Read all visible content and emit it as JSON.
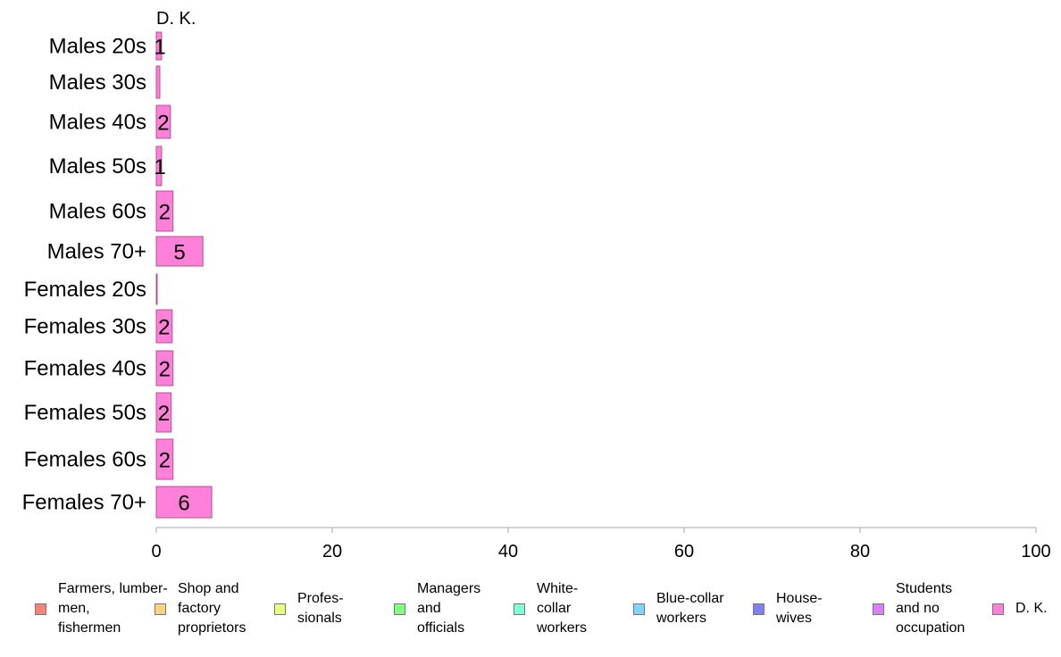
{
  "chart_data": {
    "type": "bar",
    "orientation": "horizontal",
    "stacked": true,
    "column_header": "D. K.",
    "categories": [
      "Males 20s",
      "Males 30s",
      "Males 40s",
      "Males 50s",
      "Males 60s",
      "Males 70+",
      "Females 20s",
      "Females 30s",
      "Females 40s",
      "Females 50s",
      "Females 60s",
      "Females 70+"
    ],
    "series": [
      {
        "name": "Farmers, lumber-\nmen,\nfishermen",
        "color": "#f88379",
        "values": [
          0,
          0,
          0,
          0,
          0,
          0,
          0,
          0,
          0,
          0,
          0,
          0
        ]
      },
      {
        "name": "Shop and\nfactory\nproprietors",
        "color": "#ffd27f",
        "values": [
          0,
          0,
          0,
          0,
          0,
          0,
          0,
          0,
          0,
          0,
          0,
          0
        ]
      },
      {
        "name": "Profes-\nsionals",
        "color": "#e6ff80",
        "values": [
          0,
          0,
          0,
          0,
          0,
          0,
          0,
          0,
          0,
          0,
          0,
          0
        ]
      },
      {
        "name": "Managers\nand\nofficials",
        "color": "#80ff80",
        "values": [
          0,
          0,
          0,
          0,
          0,
          0,
          0,
          0,
          0,
          0,
          0,
          0
        ]
      },
      {
        "name": "White-\ncollar\nworkers",
        "color": "#80ffd4",
        "values": [
          0,
          0,
          0,
          0,
          0,
          0,
          0,
          0,
          0,
          0,
          0,
          0
        ]
      },
      {
        "name": "Blue-collar\nworkers",
        "color": "#80d4ff",
        "values": [
          0,
          0,
          0,
          0,
          0,
          0,
          0,
          0,
          0,
          0,
          0,
          0
        ]
      },
      {
        "name": "House-\nwives",
        "color": "#8080f0",
        "values": [
          0,
          0,
          0,
          0,
          0,
          0,
          0,
          0,
          0,
          0,
          0,
          0
        ]
      },
      {
        "name": "Students\nand no\noccupation",
        "color": "#d97fff",
        "values": [
          0,
          0,
          0,
          0,
          0,
          0,
          0,
          0,
          0,
          0,
          0,
          0
        ]
      },
      {
        "name": "D. K.",
        "color": "#ff80d9",
        "values": [
          0.6,
          0.4,
          1.6,
          0.6,
          1.9,
          5.3,
          0.1,
          1.8,
          1.9,
          1.7,
          1.9,
          6.3
        ]
      }
    ],
    "data_labels": [
      "1",
      "",
      "2",
      "1",
      "2",
      "5",
      "",
      "2",
      "2",
      "2",
      "2",
      "6"
    ],
    "xlim": [
      0,
      100
    ],
    "xticks": [
      0,
      20,
      40,
      60,
      80,
      100
    ],
    "grid": false,
    "legend_position": "bottom"
  }
}
